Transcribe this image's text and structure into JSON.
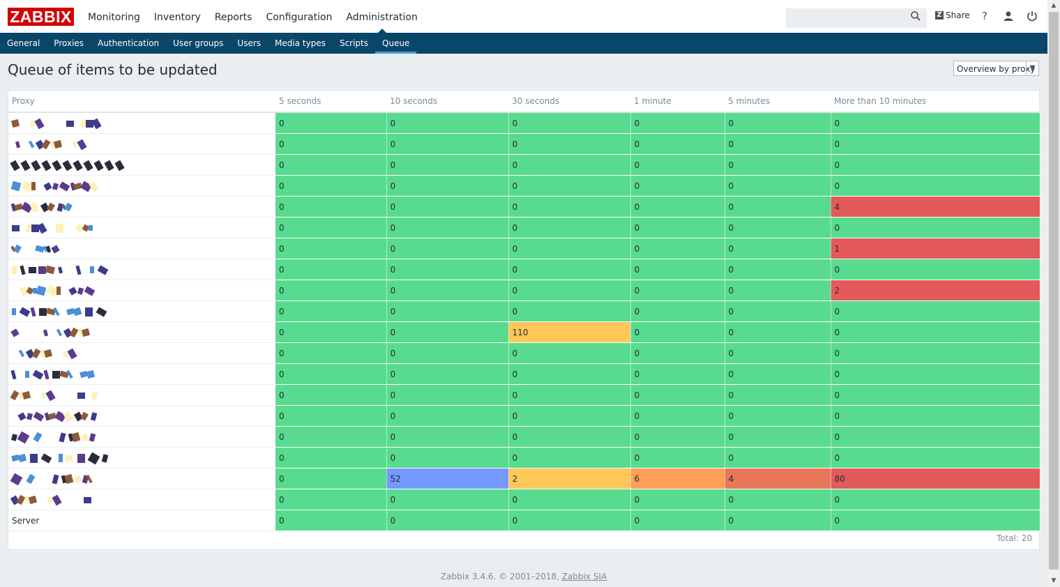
{
  "logo": "ZABBIX",
  "main_nav": [
    {
      "label": "Monitoring",
      "active": false
    },
    {
      "label": "Inventory",
      "active": false
    },
    {
      "label": "Reports",
      "active": false
    },
    {
      "label": "Configuration",
      "active": false
    },
    {
      "label": "Administration",
      "active": true
    }
  ],
  "header": {
    "share_label": "Share",
    "help_symbol": "?"
  },
  "sub_nav": [
    {
      "label": "General",
      "active": false
    },
    {
      "label": "Proxies",
      "active": false
    },
    {
      "label": "Authentication",
      "active": false
    },
    {
      "label": "User groups",
      "active": false
    },
    {
      "label": "Users",
      "active": false
    },
    {
      "label": "Media types",
      "active": false
    },
    {
      "label": "Scripts",
      "active": false
    },
    {
      "label": "Queue",
      "active": true
    }
  ],
  "page_title": "Queue of items to be updated",
  "view_select": {
    "selected": "Overview by proxy"
  },
  "table": {
    "columns": [
      "Proxy",
      "5 seconds",
      "10 seconds",
      "30 seconds",
      "1 minute",
      "5 minutes",
      "More than 10 minutes"
    ],
    "rows": [
      {
        "name": "",
        "values": [
          "0",
          "0",
          "0",
          "0",
          "0",
          "0"
        ]
      },
      {
        "name": "",
        "values": [
          "0",
          "0",
          "0",
          "0",
          "0",
          "0"
        ]
      },
      {
        "name": "",
        "values": [
          "0",
          "0",
          "0",
          "0",
          "0",
          "0"
        ]
      },
      {
        "name": "",
        "values": [
          "0",
          "0",
          "0",
          "0",
          "0",
          "0"
        ]
      },
      {
        "name": "",
        "values": [
          "0",
          "0",
          "0",
          "0",
          "0",
          "4"
        ]
      },
      {
        "name": "",
        "values": [
          "0",
          "0",
          "0",
          "0",
          "0",
          "0"
        ]
      },
      {
        "name": "",
        "values": [
          "0",
          "0",
          "0",
          "0",
          "0",
          "1"
        ]
      },
      {
        "name": "",
        "values": [
          "0",
          "0",
          "0",
          "0",
          "0",
          "0"
        ]
      },
      {
        "name": "",
        "values": [
          "0",
          "0",
          "0",
          "0",
          "0",
          "2"
        ]
      },
      {
        "name": "",
        "values": [
          "0",
          "0",
          "0",
          "0",
          "0",
          "0"
        ]
      },
      {
        "name": "",
        "values": [
          "0",
          "0",
          "110",
          "0",
          "0",
          "0"
        ]
      },
      {
        "name": "",
        "values": [
          "0",
          "0",
          "0",
          "0",
          "0",
          "0"
        ]
      },
      {
        "name": "",
        "values": [
          "0",
          "0",
          "0",
          "0",
          "0",
          "0"
        ]
      },
      {
        "name": "",
        "values": [
          "0",
          "0",
          "0",
          "0",
          "0",
          "0"
        ]
      },
      {
        "name": "",
        "values": [
          "0",
          "0",
          "0",
          "0",
          "0",
          "0"
        ]
      },
      {
        "name": "",
        "values": [
          "0",
          "0",
          "0",
          "0",
          "0",
          "0"
        ]
      },
      {
        "name": "",
        "values": [
          "0",
          "0",
          "0",
          "0",
          "0",
          "0"
        ]
      },
      {
        "name": "",
        "values": [
          "0",
          "52",
          "2",
          "6",
          "4",
          "80"
        ]
      },
      {
        "name": "",
        "values": [
          "0",
          "0",
          "0",
          "0",
          "0",
          "0"
        ]
      },
      {
        "name": "Server",
        "values": [
          "0",
          "0",
          "0",
          "0",
          "0",
          "0"
        ]
      }
    ],
    "column_colors": [
      "#59db8f",
      "#7499ff",
      "#ffc859",
      "#ffa059",
      "#e97659",
      "#e45959"
    ],
    "ok_color": "#59db8f"
  },
  "total": "Total: 20",
  "footer": {
    "text": "Zabbix 3.4.6. © 2001–2018, ",
    "link": "Zabbix SIA"
  }
}
